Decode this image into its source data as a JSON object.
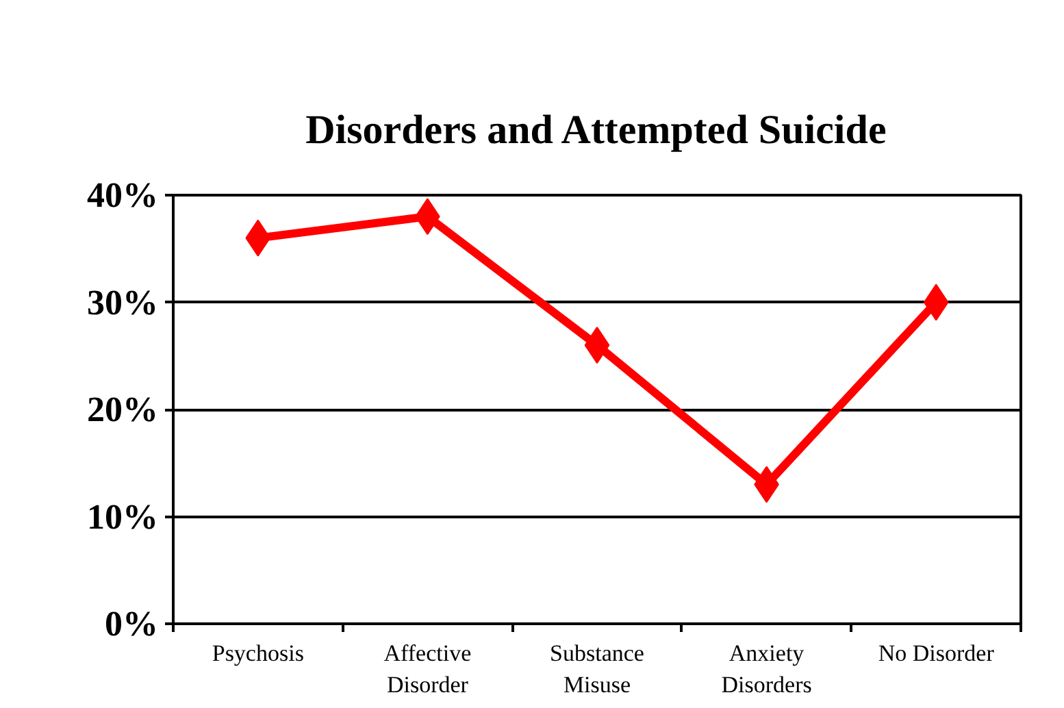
{
  "chart_data": {
    "type": "line",
    "title": "Disorders and Attempted Suicide",
    "categories": [
      "Psychosis",
      "Affective Disorder",
      "Substance Misuse",
      "Anxiety Disorders",
      "No Disorder"
    ],
    "series": [
      {
        "color": "#ff0000",
        "values": [
          36,
          38,
          26,
          13,
          30
        ]
      }
    ],
    "ylim": [
      0,
      40
    ],
    "yticks": [
      {
        "value": 0,
        "label": "0%"
      },
      {
        "value": 10,
        "label": "10%"
      },
      {
        "value": 20,
        "label": "20%"
      },
      {
        "value": 30,
        "label": "30%"
      },
      {
        "value": 40,
        "label": "40%"
      }
    ],
    "grid": "y",
    "marker": "diamond",
    "line_style": "solid"
  }
}
